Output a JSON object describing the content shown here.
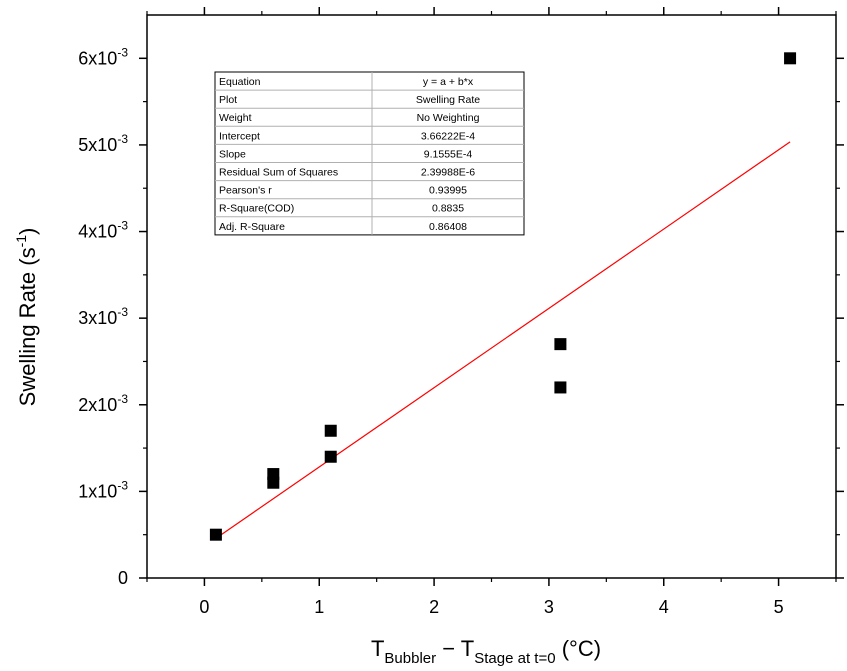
{
  "chart_data": {
    "type": "scatter",
    "x_ticks": [
      "0",
      "1",
      "2",
      "3",
      "4",
      "5"
    ],
    "y_ticks": [
      {
        "value": 0,
        "label": "0",
        "exp": ""
      },
      {
        "value": 0.001,
        "label": "1x10",
        "exp": "-3"
      },
      {
        "value": 0.002,
        "label": "2x10",
        "exp": "-3"
      },
      {
        "value": 0.003,
        "label": "3x10",
        "exp": "-3"
      },
      {
        "value": 0.004,
        "label": "4x10",
        "exp": "-3"
      },
      {
        "value": 0.005,
        "label": "5x10",
        "exp": "-3"
      },
      {
        "value": 0.006,
        "label": "6x10",
        "exp": "-3"
      }
    ],
    "xlim": [
      -0.5,
      5.5
    ],
    "ylim": [
      0,
      0.0065
    ],
    "ylabel": {
      "text": "Swelling Rate (s",
      "sup": "-1",
      "close": ")"
    },
    "xlabel": {
      "t1": "T",
      "sub1": "Bubbler",
      "dash": " − T",
      "sub2": "Stage at t=0",
      "unit": " (°C)"
    },
    "points": [
      {
        "x": 0.1,
        "y": 0.0005
      },
      {
        "x": 0.6,
        "y": 0.0012
      },
      {
        "x": 0.6,
        "y": 0.0011
      },
      {
        "x": 1.1,
        "y": 0.0017
      },
      {
        "x": 1.1,
        "y": 0.0014
      },
      {
        "x": 3.1,
        "y": 0.0027
      },
      {
        "x": 3.1,
        "y": 0.0022
      },
      {
        "x": 5.1,
        "y": 0.006
      }
    ],
    "fit": {
      "intercept": 0.000366222,
      "slope": 0.00091555,
      "x_range": [
        0.1,
        5.1
      ],
      "color": "#ff0000"
    },
    "marker_color": "#000000",
    "grid": false,
    "stats_table": [
      {
        "label": "Equation",
        "value": "y = a + b*x"
      },
      {
        "label": "Plot",
        "value": "Swelling Rate"
      },
      {
        "label": "Weight",
        "value": "No Weighting"
      },
      {
        "label": "Intercept",
        "value": "3.66222E-4"
      },
      {
        "label": "Slope",
        "value": "9.1555E-4"
      },
      {
        "label": "Residual Sum of Squares",
        "value": "2.39988E-6"
      },
      {
        "label": "Pearson's r",
        "value": "0.93995"
      },
      {
        "label": "R-Square(COD)",
        "value": "0.8835"
      },
      {
        "label": "Adj. R-Square",
        "value": "0.86408"
      }
    ]
  }
}
